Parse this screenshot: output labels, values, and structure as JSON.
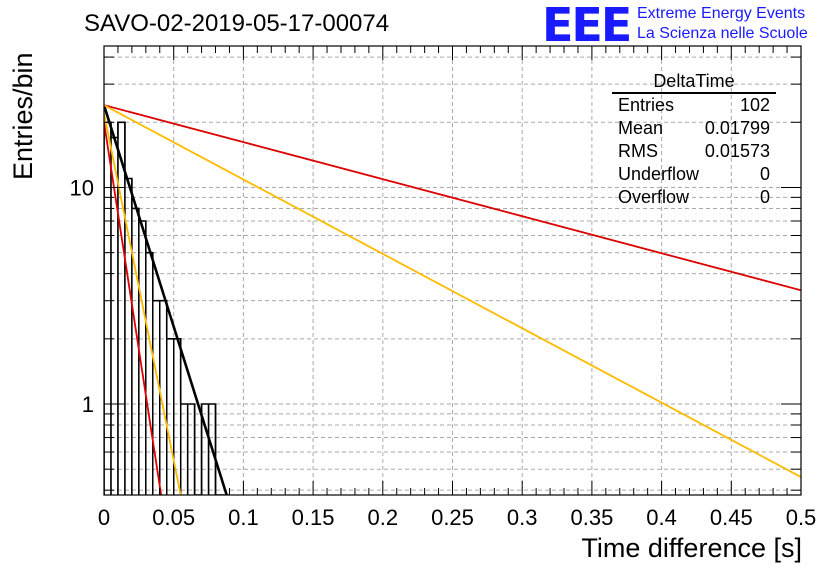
{
  "header": {
    "run_title": "SAVO-02-2019-05-17-00074",
    "logo_mark": "EEE",
    "logo_line1": "Extreme Energy Events",
    "logo_line2": "La Scienza nelle Scuole"
  },
  "stats_box": {
    "title": "DeltaTime",
    "rows": [
      {
        "label": "Entries",
        "value": "102"
      },
      {
        "label": "Mean",
        "value": "0.01799"
      },
      {
        "label": "RMS",
        "value": "0.01573"
      },
      {
        "label": "Underflow",
        "value": "0"
      },
      {
        "label": "Overflow",
        "value": "0"
      }
    ]
  },
  "chart_data": {
    "type": "bar",
    "title": "SAVO-02-2019-05-17-00074",
    "xlabel": "Time difference [s]",
    "ylabel": "Entries/bin",
    "xlim": [
      0,
      0.5
    ],
    "ylim": [
      0.38,
      45
    ],
    "yscale": "log",
    "grid": true,
    "x_ticks": [
      0,
      0.05,
      0.1,
      0.15,
      0.2,
      0.25,
      0.3,
      0.35,
      0.4,
      0.45,
      0.5
    ],
    "x_tick_labels": [
      "0",
      "0.05",
      "0.1",
      "0.15",
      "0.2",
      "0.25",
      "0.3",
      "0.35",
      "0.4",
      "0.45",
      "0.5"
    ],
    "y_ticks": [
      1,
      10
    ],
    "y_tick_labels": [
      "1",
      "10"
    ],
    "histogram": {
      "bin_width": 0.005,
      "bin_start": 0,
      "counts": [
        20,
        17,
        20,
        11,
        8,
        7,
        5,
        3,
        3,
        2,
        2,
        1,
        1,
        0,
        1,
        1,
        0,
        0
      ]
    },
    "fit_lines": [
      {
        "color": "#000000",
        "width": 2.6,
        "points": [
          [
            0.0,
            24
          ],
          [
            0.088,
            0.38
          ]
        ]
      },
      {
        "color": "#dd0000",
        "width": 1.8,
        "points": [
          [
            0.0,
            24
          ],
          [
            0.5,
            3.35
          ]
        ]
      },
      {
        "color": "#ffbb00",
        "width": 1.8,
        "points": [
          [
            0.0,
            24
          ],
          [
            0.5,
            0.46
          ]
        ]
      },
      {
        "color": "#dd0000",
        "width": 1.8,
        "points": [
          [
            0.0,
            20
          ],
          [
            0.041,
            0.38
          ]
        ]
      },
      {
        "color": "#ffbb00",
        "width": 1.8,
        "points": [
          [
            0.0,
            22
          ],
          [
            0.055,
            0.38
          ]
        ]
      }
    ]
  }
}
